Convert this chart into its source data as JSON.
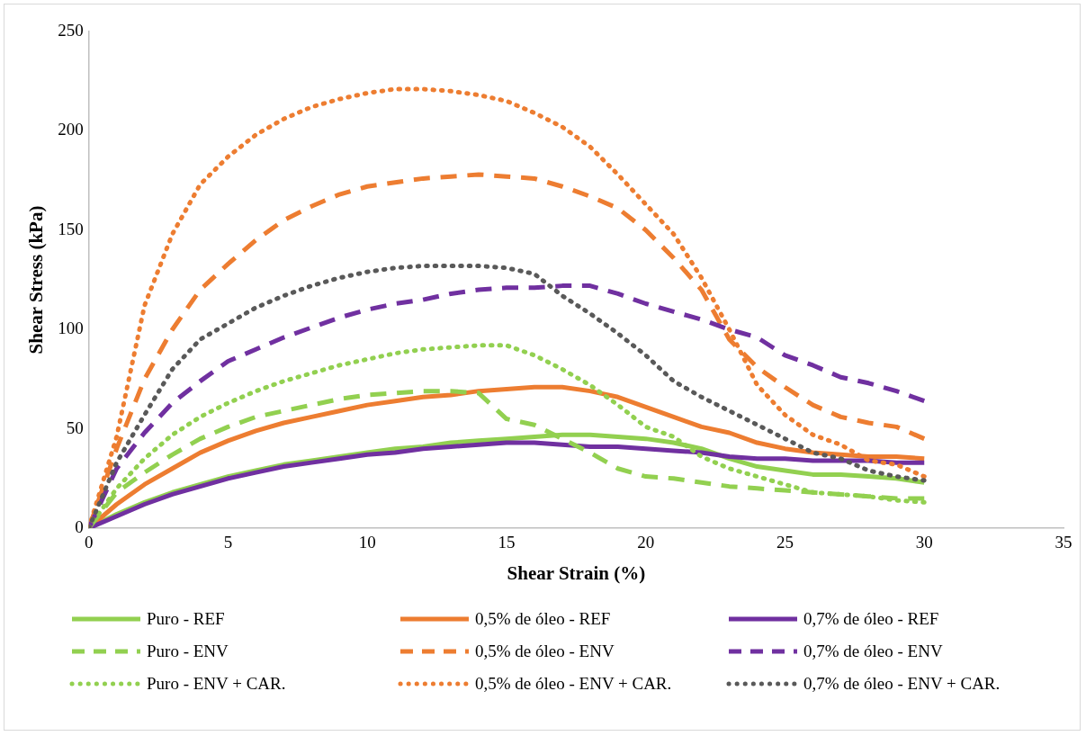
{
  "chart_data": {
    "type": "line",
    "xlabel": "Shear Strain (%)",
    "ylabel": "Shear Stress (kPa)",
    "xlim": [
      0,
      35
    ],
    "xticks": [
      0,
      5,
      10,
      15,
      20,
      25,
      30,
      35
    ],
    "ylim": [
      0,
      250
    ],
    "yticks": [
      0,
      50,
      100,
      150,
      200,
      250
    ],
    "grid": false,
    "legend": "bottom",
    "marker": "none",
    "x": [
      0,
      1,
      2,
      3,
      4,
      5,
      6,
      7,
      8,
      9,
      10,
      11,
      12,
      13,
      14,
      15,
      16,
      17,
      18,
      19,
      20,
      21,
      22,
      23,
      24,
      25,
      26,
      27,
      28,
      29,
      30
    ],
    "series": [
      {
        "name": "Puro - REF",
        "color": "#92d050",
        "line_style": "solid",
        "values": [
          0,
          7,
          13,
          18,
          22,
          26,
          29,
          32,
          34,
          36,
          38,
          40,
          41,
          43,
          44,
          45,
          46,
          47,
          47,
          46,
          45,
          43,
          40,
          35,
          31,
          29,
          27,
          27,
          26,
          25,
          23
        ]
      },
      {
        "name": "0,5% de óleo - REF",
        "color": "#ed7d31",
        "line_style": "solid",
        "values": [
          0,
          12,
          22,
          30,
          38,
          44,
          49,
          53,
          56,
          59,
          62,
          64,
          66,
          67,
          69,
          70,
          71,
          71,
          69,
          66,
          61,
          56,
          51,
          48,
          43,
          40,
          38,
          37,
          36,
          36,
          35
        ]
      },
      {
        "name": "0,7% de óleo - REF",
        "color": "#7030a0",
        "line_style": "solid",
        "values": [
          0,
          6,
          12,
          17,
          21,
          25,
          28,
          31,
          33,
          35,
          37,
          38,
          40,
          41,
          42,
          43,
          43,
          42,
          41,
          41,
          40,
          39,
          38,
          36,
          35,
          35,
          34,
          34,
          34,
          33,
          33
        ]
      },
      {
        "name": "Puro - ENV",
        "color": "#92d050",
        "line_style": "dashed",
        "values": [
          0,
          18,
          28,
          37,
          45,
          51,
          56,
          59,
          62,
          65,
          67,
          68,
          69,
          69,
          68,
          55,
          52,
          45,
          38,
          30,
          26,
          25,
          23,
          21,
          20,
          19,
          18,
          17,
          16,
          15,
          15
        ]
      },
      {
        "name": "0,5% de óleo - ENV",
        "color": "#ed7d31",
        "line_style": "dashed",
        "values": [
          0,
          40,
          75,
          100,
          120,
          133,
          145,
          155,
          162,
          168,
          172,
          174,
          176,
          177,
          178,
          177,
          176,
          172,
          167,
          161,
          150,
          136,
          120,
          95,
          81,
          71,
          62,
          56,
          53,
          51,
          45
        ]
      },
      {
        "name": "0,7% de óleo - ENV",
        "color": "#7030a0",
        "line_style": "dashed",
        "values": [
          0,
          30,
          48,
          63,
          74,
          84,
          90,
          96,
          101,
          106,
          110,
          113,
          115,
          118,
          120,
          121,
          121,
          122,
          122,
          118,
          113,
          109,
          105,
          100,
          96,
          87,
          82,
          76,
          73,
          69,
          64
        ]
      },
      {
        "name": "Puro - ENV + CAR.",
        "color": "#92d050",
        "line_style": "dotted",
        "values": [
          0,
          20,
          35,
          47,
          56,
          63,
          69,
          74,
          78,
          82,
          85,
          88,
          90,
          91,
          92,
          92,
          87,
          80,
          72,
          62,
          51,
          46,
          36,
          30,
          26,
          22,
          18,
          17,
          16,
          14,
          13
        ]
      },
      {
        "name": "0,5% de óleo - ENV + CAR.",
        "color": "#ed7d31",
        "line_style": "dotted",
        "values": [
          0,
          46,
          112,
          148,
          173,
          187,
          198,
          206,
          212,
          216,
          219,
          221,
          221,
          220,
          218,
          215,
          209,
          202,
          192,
          178,
          163,
          148,
          126,
          100,
          72,
          57,
          47,
          42,
          34,
          32,
          26
        ]
      },
      {
        "name": "0,7% de óleo - ENV + CAR.",
        "color": "#595959",
        "line_style": "dotted",
        "values": [
          0,
          33,
          57,
          80,
          95,
          103,
          111,
          117,
          122,
          126,
          129,
          131,
          132,
          132,
          132,
          131,
          128,
          117,
          108,
          98,
          87,
          74,
          66,
          59,
          52,
          45,
          38,
          35,
          29,
          26,
          24
        ]
      }
    ]
  }
}
